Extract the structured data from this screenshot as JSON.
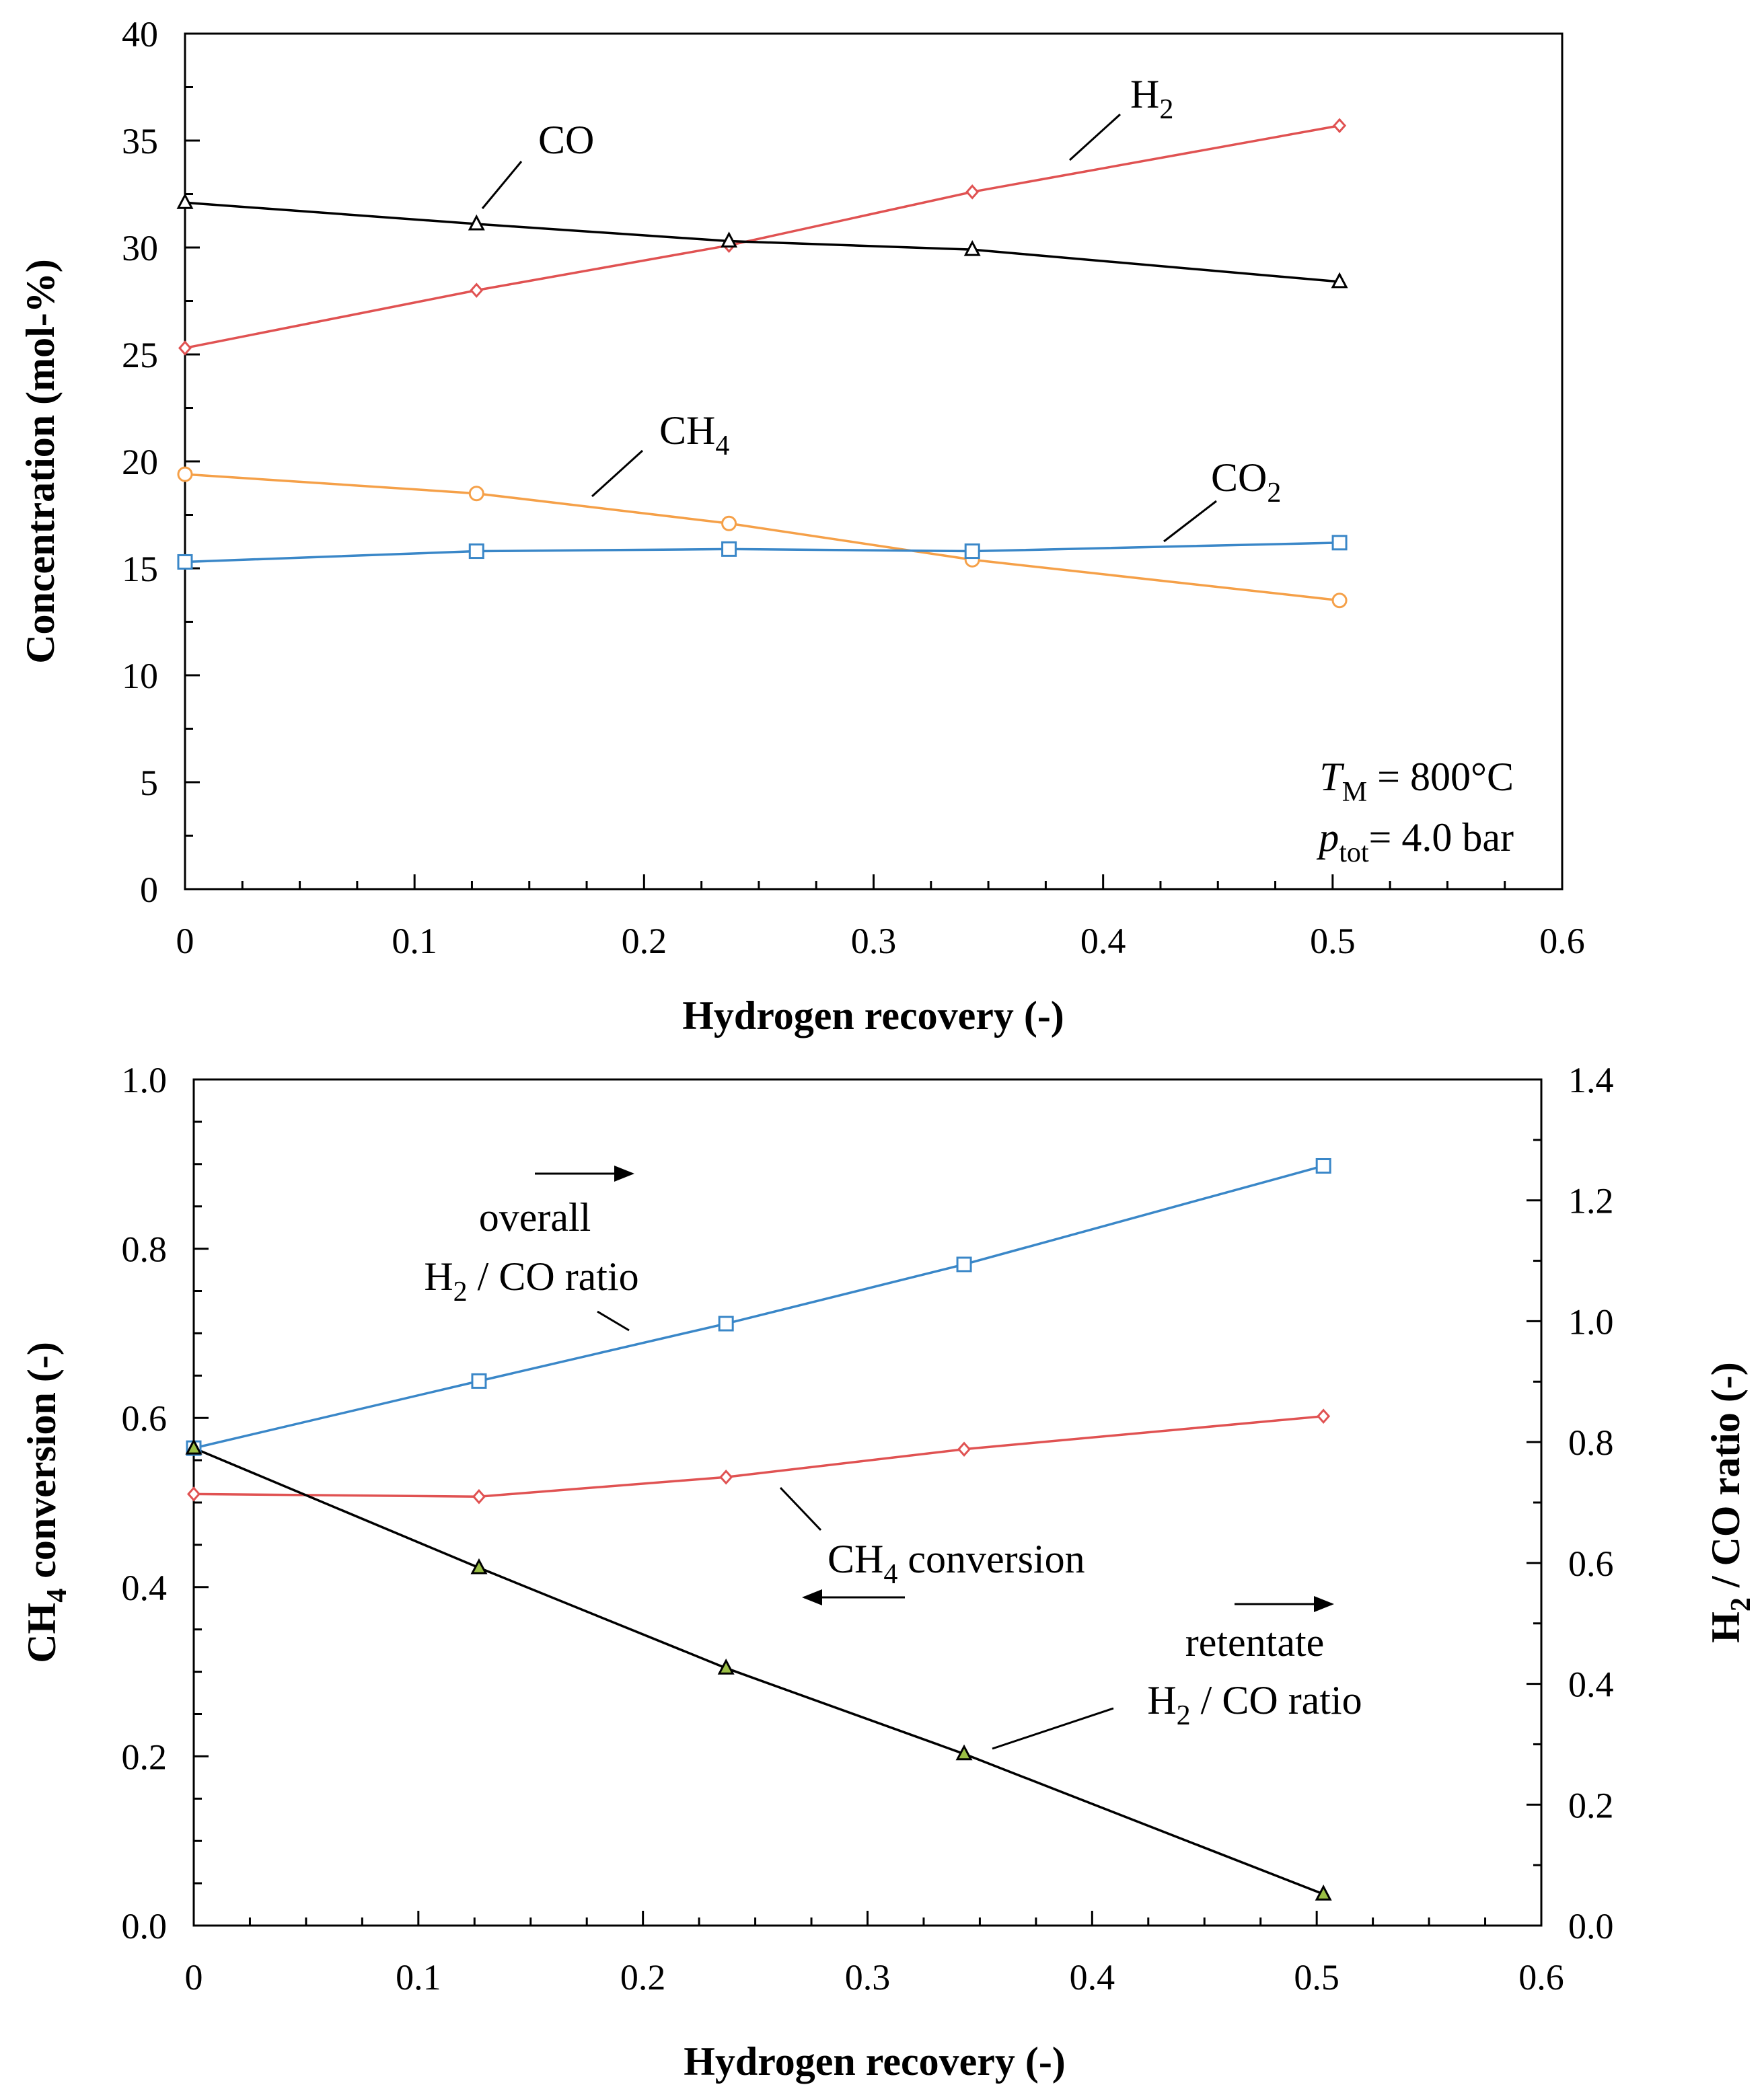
{
  "chart_data": [
    {
      "type": "line",
      "title": "",
      "xlabel": "Hydrogen recovery (-)",
      "ylabel": "Concentration (mol-%)",
      "xlim": [
        0,
        0.6
      ],
      "ylim": [
        0,
        40
      ],
      "xticks": [
        "0",
        "0.1",
        "0.2",
        "0.3",
        "0.4",
        "0.5",
        "0.6"
      ],
      "yticks": [
        "0",
        "5",
        "10",
        "15",
        "20",
        "25",
        "30",
        "35",
        "40"
      ],
      "grid": false,
      "legend": "none",
      "x": [
        0,
        0.127,
        0.237,
        0.343,
        0.503
      ],
      "series": [
        {
          "name": "H2",
          "label_main": "H",
          "label_sub": "2",
          "color": "#e05252",
          "marker": "diamond",
          "values": [
            25.3,
            28.0,
            30.1,
            32.6,
            35.7
          ]
        },
        {
          "name": "CO",
          "label_main": "CO",
          "label_sub": "",
          "color": "#000000",
          "marker": "triangle",
          "values": [
            32.1,
            31.1,
            30.3,
            29.9,
            28.4
          ]
        },
        {
          "name": "CH4",
          "label_main": "CH",
          "label_sub": "4",
          "color": "#f5a048",
          "marker": "circle",
          "values": [
            19.4,
            18.5,
            17.1,
            15.4,
            13.5
          ]
        },
        {
          "name": "CO2",
          "label_main": "CO",
          "label_sub": "2",
          "color": "#3a87c8",
          "marker": "square",
          "values": [
            15.3,
            15.8,
            15.9,
            15.8,
            16.2
          ]
        }
      ],
      "conditions": {
        "t_main": "T",
        "t_sub": "M",
        "t_value": " = 800°C",
        "p_main": "p",
        "p_sub": "tot",
        "p_value": "= 4.0 bar"
      }
    },
    {
      "type": "line",
      "title": "",
      "xlabel": "Hydrogen recovery (-)",
      "ylabel_main": "CH",
      "ylabel_sub": "4",
      "ylabel_rest": " conversion (-)",
      "y2label_main": "H",
      "y2label_sub": "2",
      "y2label_rest": " / CO ratio (-)",
      "xlim": [
        0,
        0.6
      ],
      "ylim": [
        0,
        1.0
      ],
      "y2lim": [
        0,
        1.4
      ],
      "xticks": [
        "0",
        "0.1",
        "0.2",
        "0.3",
        "0.4",
        "0.5",
        "0.6"
      ],
      "yticks": [
        "0.0",
        "0.2",
        "0.4",
        "0.6",
        "0.8",
        "1.0"
      ],
      "y2ticks": [
        "0.0",
        "0.2",
        "0.4",
        "0.6",
        "0.8",
        "1.0",
        "1.2",
        "1.4"
      ],
      "grid": false,
      "legend": "none",
      "x": [
        0,
        0.127,
        0.237,
        0.343,
        0.503
      ],
      "series": [
        {
          "name": "overall H2 / CO ratio",
          "axis": "right",
          "color": "#3a87c8",
          "marker": "square",
          "values": [
            0.79,
            0.901,
            0.996,
            1.094,
            1.257
          ]
        },
        {
          "name": "CH4 conversion",
          "axis": "left",
          "color": "#e05252",
          "marker": "diamond",
          "values": [
            0.51,
            0.507,
            0.53,
            0.563,
            0.602
          ]
        },
        {
          "name": "retentate H2 / CO ratio",
          "axis": "right",
          "color": "#000000",
          "marker": "triangle-green",
          "values": [
            0.79,
            0.592,
            0.426,
            0.284,
            0.052
          ]
        }
      ],
      "annotations": {
        "overall_line1": "overall",
        "overall_h": "H",
        "overall_sub": "2",
        "overall_rest": " / CO ratio",
        "conv_main": "CH",
        "conv_sub": "4",
        "conv_rest": " conversion",
        "ret_line1": "retentate",
        "ret_h": "H",
        "ret_sub": "2",
        "ret_rest": " / CO ratio"
      }
    }
  ]
}
